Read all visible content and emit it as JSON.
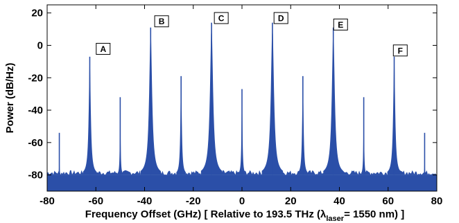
{
  "chart_data": {
    "type": "line",
    "title": "",
    "xlabel_main": "Frequency Offset (GHz) [ Relative to 193.5 THz (",
    "xlabel_lambda": "λ",
    "xlabel_sub": "laser",
    "xlabel_tail": "= 1550 nm) ]",
    "ylabel": "Power (dB/Hz)",
    "xlim": [
      -80,
      80
    ],
    "ylim": [
      -90,
      25
    ],
    "x_ticks": [
      -80,
      -60,
      -40,
      -20,
      0,
      20,
      40,
      60,
      80
    ],
    "y_ticks": [
      -80,
      -60,
      -40,
      -20,
      0,
      20
    ],
    "grid": false,
    "noise_floor": {
      "from": -84,
      "to": -80
    },
    "series": [
      {
        "color": "#2b4fa8",
        "peaks": [
          {
            "x": -75,
            "y": -54,
            "label": ""
          },
          {
            "x": -62.5,
            "y": -7,
            "label": ""
          },
          {
            "x": -50,
            "y": -32,
            "label": ""
          },
          {
            "x": -37.5,
            "y": 11,
            "label": ""
          },
          {
            "x": -25,
            "y": -19,
            "label": ""
          },
          {
            "x": -12.5,
            "y": 14,
            "label": ""
          },
          {
            "x": 0,
            "y": -27,
            "label": ""
          },
          {
            "x": 12.5,
            "y": 14,
            "label": ""
          },
          {
            "x": 25,
            "y": -19,
            "label": ""
          },
          {
            "x": 37.5,
            "y": 11,
            "label": ""
          },
          {
            "x": 50,
            "y": -32,
            "label": ""
          },
          {
            "x": 62.5,
            "y": -7,
            "label": ""
          },
          {
            "x": 75,
            "y": -54,
            "label": ""
          }
        ]
      }
    ],
    "annotations": [
      {
        "text": "A",
        "x": -57,
        "y": -6
      },
      {
        "text": "B",
        "x": -33,
        "y": 11
      },
      {
        "text": "C",
        "x": -8.5,
        "y": 13
      },
      {
        "text": "D",
        "x": 16,
        "y": 13
      },
      {
        "text": "E",
        "x": 40.5,
        "y": 9
      },
      {
        "text": "F",
        "x": 65,
        "y": -7
      }
    ]
  }
}
